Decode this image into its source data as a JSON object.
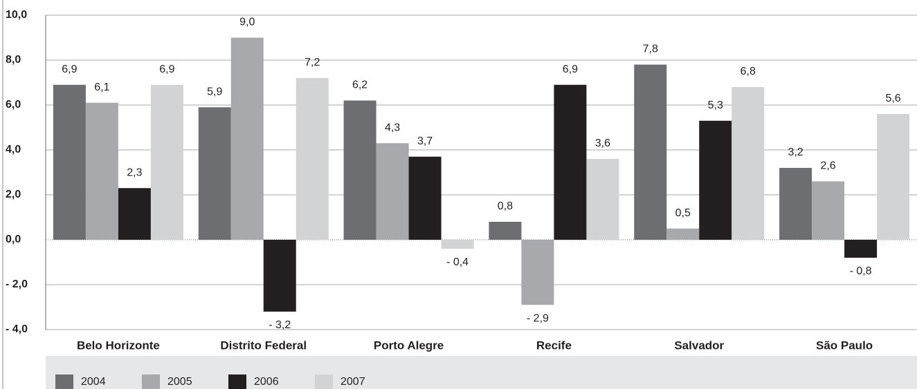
{
  "chart_data": {
    "type": "bar",
    "categories": [
      "Belo Horizonte",
      "Distrito Federal",
      "Porto Alegre",
      "Recife",
      "Salvador",
      "São Paulo"
    ],
    "series": [
      {
        "name": "2004",
        "color": "#6d6e71",
        "values": [
          6.9,
          5.9,
          6.2,
          0.8,
          7.8,
          3.2
        ],
        "value_labels": [
          "6,9",
          "5,9",
          "6,2",
          "0,8",
          "7,8",
          "3,2"
        ]
      },
      {
        "name": "2005",
        "color": "#a7a9ac",
        "values": [
          6.1,
          9.0,
          4.3,
          -2.9,
          0.5,
          2.6
        ],
        "value_labels": [
          "6,1",
          "9,0",
          "4,3",
          "- 2,9",
          "0,5",
          "2,6"
        ]
      },
      {
        "name": "2006",
        "color": "#231f20",
        "values": [
          2.3,
          -3.2,
          3.7,
          6.9,
          5.3,
          -0.8
        ],
        "value_labels": [
          "2,3",
          "- 3,2",
          "3,7",
          "6,9",
          "5,3",
          "- 0,8"
        ]
      },
      {
        "name": "2007",
        "color": "#d1d3d4",
        "values": [
          6.9,
          7.2,
          -0.4,
          3.6,
          6.8,
          5.6
        ],
        "value_labels": [
          "6,9",
          "7,2",
          "- 0,4",
          "3,6",
          "6,8",
          "5,6"
        ]
      }
    ],
    "ylim": [
      -4,
      10
    ],
    "yticks": [
      {
        "value": -4,
        "label": "- 4,0"
      },
      {
        "value": -2,
        "label": "- 2,0"
      },
      {
        "value": 0,
        "label": "0,0"
      },
      {
        "value": 2,
        "label": "2,0"
      },
      {
        "value": 4,
        "label": "4,0"
      },
      {
        "value": 6,
        "label": "6,0"
      },
      {
        "value": 8,
        "label": "8,0"
      },
      {
        "value": 10,
        "label": "10,0"
      }
    ],
    "grid": true,
    "legend": "bottom"
  }
}
